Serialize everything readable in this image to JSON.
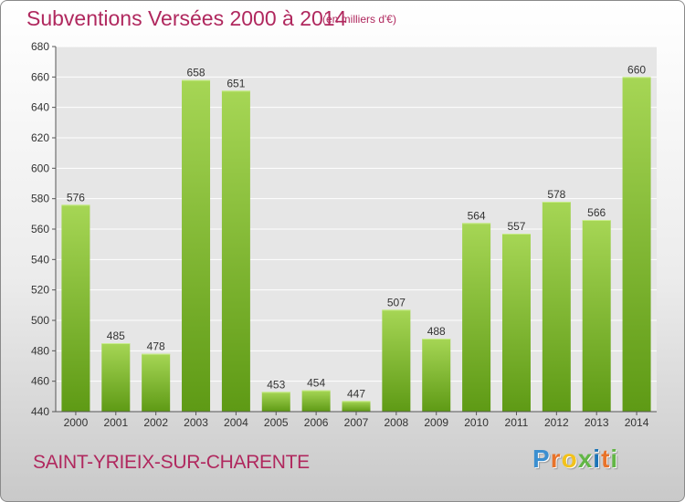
{
  "title": "Subventions Versées 2000 à 2014",
  "subtitle": "(en milliers d'€)",
  "footer": {
    "commune": "SAINT-YRIEIX-SUR-CHARENTE"
  },
  "logo": {
    "text": "Proxiti",
    "letters": [
      "P",
      "r",
      "o",
      "x",
      "i",
      "t",
      "i"
    ],
    "letter_colors": [
      "#3b8fd0",
      "#e8732a",
      "#f2c21b",
      "#62b646",
      "#1b74b7",
      "#e8732a",
      "#62b646"
    ]
  },
  "colors": {
    "bar_light": "#a6d655",
    "bar_dark": "#5e9a15",
    "text_accent": "#b0285e"
  },
  "chart_data": {
    "type": "bar",
    "categories": [
      "2000",
      "2001",
      "2002",
      "2003",
      "2004",
      "2005",
      "2006",
      "2007",
      "2008",
      "2009",
      "2010",
      "2011",
      "2012",
      "2013",
      "2014"
    ],
    "values": [
      576,
      485,
      478,
      658,
      651,
      453,
      454,
      447,
      507,
      488,
      564,
      557,
      578,
      566,
      660
    ],
    "ylim": [
      440,
      680
    ],
    "yticks": [
      440,
      460,
      480,
      500,
      520,
      540,
      560,
      580,
      600,
      620,
      640,
      660,
      680
    ],
    "grid": true,
    "data_labels": true
  }
}
